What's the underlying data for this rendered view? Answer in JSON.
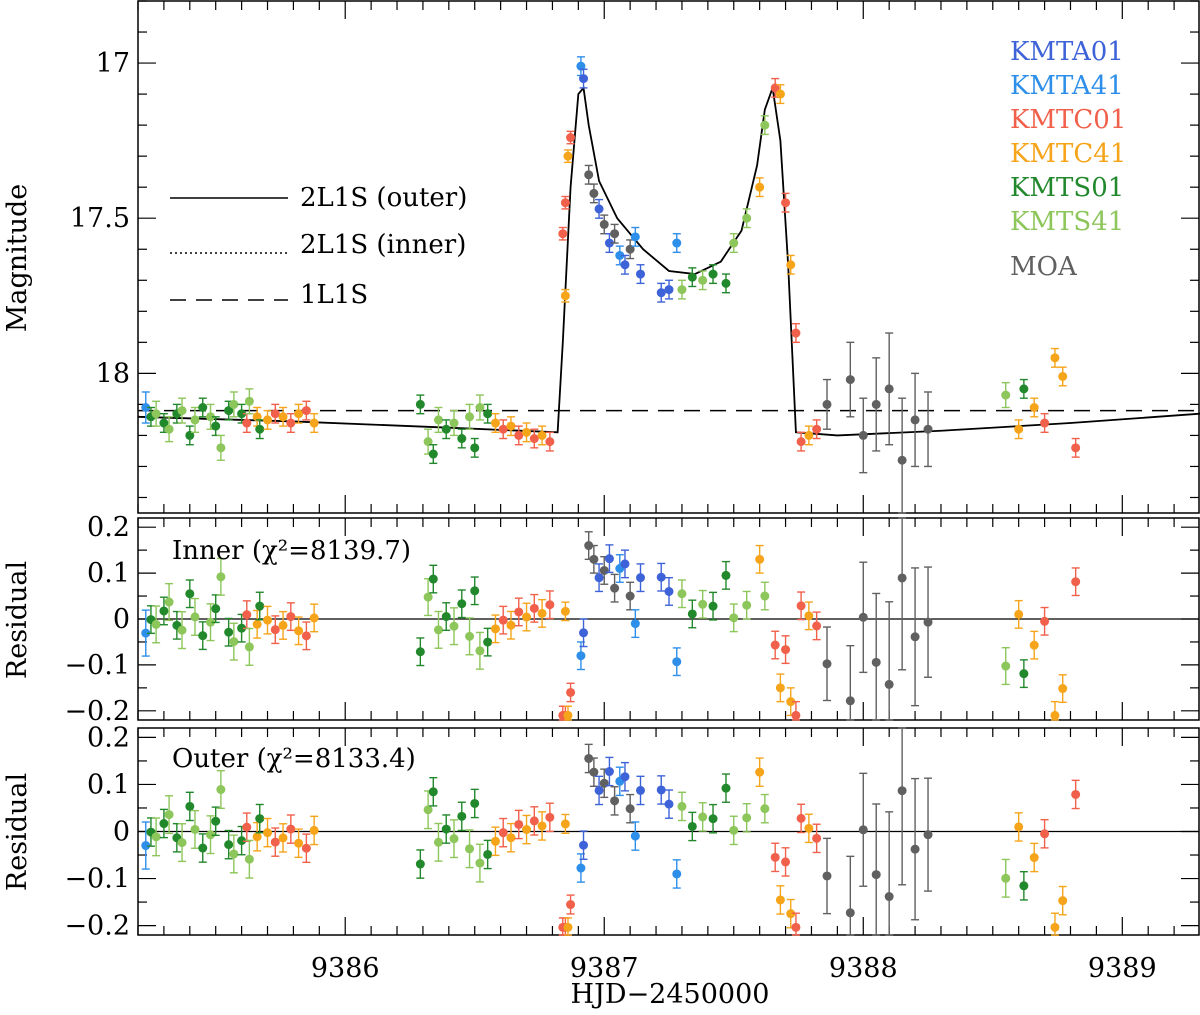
{
  "chart_data": [
    {
      "panel": "main",
      "type": "scatter",
      "xlabel": "HJD−2450000",
      "ylabel": "Magnitude",
      "xlim": [
        9385.2,
        9389.3
      ],
      "ylim": [
        18.45,
        16.8
      ],
      "y_inverted": true,
      "xticks": [
        9386,
        9387,
        9388,
        9389
      ],
      "xtick_labels": [
        "9386",
        "9387",
        "9388",
        "9389"
      ],
      "yticks": [
        17,
        17.5,
        18
      ],
      "ytick_labels": [
        "17",
        "17.5",
        "18"
      ],
      "legend_position": "top-right",
      "datasets": [
        {
          "name": "KMTA01",
          "color": "#3E63D8"
        },
        {
          "name": "KMTA41",
          "color": "#2E8FEA"
        },
        {
          "name": "KMTC01",
          "color": "#F1604B"
        },
        {
          "name": "KMTC41",
          "color": "#F6A41A"
        },
        {
          "name": "KMTS01",
          "color": "#22882C"
        },
        {
          "name": "KMTS41",
          "color": "#8DC65A"
        },
        {
          "name": "MOA",
          "color": "#606060"
        }
      ],
      "models": [
        {
          "name": "2L1S (outer)",
          "style": "solid"
        },
        {
          "name": "2L1S (inner)",
          "style": "dotted"
        },
        {
          "name": "1L1S",
          "style": "dashed"
        }
      ],
      "model_2l1s_points": [
        [
          9385.2,
          18.14
        ],
        [
          9385.8,
          18.155
        ],
        [
          9386.4,
          18.175
        ],
        [
          9386.82,
          18.19
        ],
        [
          9386.84,
          17.9
        ],
        [
          9386.87,
          17.4
        ],
        [
          9386.9,
          17.1
        ],
        [
          9386.92,
          17.08
        ],
        [
          9386.94,
          17.2
        ],
        [
          9386.98,
          17.38
        ],
        [
          9387.05,
          17.5
        ],
        [
          9387.15,
          17.6
        ],
        [
          9387.25,
          17.67
        ],
        [
          9387.35,
          17.68
        ],
        [
          9387.45,
          17.64
        ],
        [
          9387.53,
          17.54
        ],
        [
          9387.59,
          17.33
        ],
        [
          9387.62,
          17.15
        ],
        [
          9387.65,
          17.08
        ],
        [
          9387.68,
          17.25
        ],
        [
          9387.71,
          17.65
        ],
        [
          9387.74,
          18.19
        ],
        [
          9387.9,
          18.2
        ],
        [
          9388.3,
          18.185
        ],
        [
          9388.8,
          18.16
        ],
        [
          9389.3,
          18.13
        ]
      ],
      "model_1l1s_points": [
        [
          9385.2,
          18.12
        ],
        [
          9389.3,
          18.12
        ]
      ],
      "data_points": [
        {
          "ds": "KMTA41",
          "x": 9385.23,
          "y": 18.11,
          "err": 0.05
        },
        {
          "ds": "KMTS01",
          "x": 9385.25,
          "y": 18.14,
          "err": 0.03
        },
        {
          "ds": "KMTS41",
          "x": 9385.27,
          "y": 18.13,
          "err": 0.04
        },
        {
          "ds": "KMTS01",
          "x": 9385.3,
          "y": 18.16,
          "err": 0.03
        },
        {
          "ds": "KMTS41",
          "x": 9385.32,
          "y": 18.18,
          "err": 0.04
        },
        {
          "ds": "KMTS01",
          "x": 9385.35,
          "y": 18.13,
          "err": 0.03
        },
        {
          "ds": "KMTS41",
          "x": 9385.37,
          "y": 18.12,
          "err": 0.04
        },
        {
          "ds": "KMTS01",
          "x": 9385.4,
          "y": 18.2,
          "err": 0.03
        },
        {
          "ds": "KMTS41",
          "x": 9385.42,
          "y": 18.15,
          "err": 0.04
        },
        {
          "ds": "KMTS01",
          "x": 9385.45,
          "y": 18.11,
          "err": 0.03
        },
        {
          "ds": "KMTS41",
          "x": 9385.48,
          "y": 18.14,
          "err": 0.04
        },
        {
          "ds": "KMTS01",
          "x": 9385.5,
          "y": 18.17,
          "err": 0.03
        },
        {
          "ds": "KMTS41",
          "x": 9385.52,
          "y": 18.24,
          "err": 0.04
        },
        {
          "ds": "KMTS01",
          "x": 9385.55,
          "y": 18.12,
          "err": 0.03
        },
        {
          "ds": "KMTS41",
          "x": 9385.57,
          "y": 18.1,
          "err": 0.04
        },
        {
          "ds": "KMTS01",
          "x": 9385.6,
          "y": 18.13,
          "err": 0.03
        },
        {
          "ds": "KMTC01",
          "x": 9385.62,
          "y": 18.16,
          "err": 0.03
        },
        {
          "ds": "KMTS41",
          "x": 9385.63,
          "y": 18.09,
          "err": 0.04
        },
        {
          "ds": "KMTC41",
          "x": 9385.66,
          "y": 18.14,
          "err": 0.03
        },
        {
          "ds": "KMTS01",
          "x": 9385.67,
          "y": 18.18,
          "err": 0.03
        },
        {
          "ds": "KMTC41",
          "x": 9385.7,
          "y": 18.15,
          "err": 0.03
        },
        {
          "ds": "KMTC01",
          "x": 9385.73,
          "y": 18.13,
          "err": 0.03
        },
        {
          "ds": "KMTC41",
          "x": 9385.76,
          "y": 18.14,
          "err": 0.03
        },
        {
          "ds": "KMTC01",
          "x": 9385.79,
          "y": 18.16,
          "err": 0.03
        },
        {
          "ds": "KMTC41",
          "x": 9385.82,
          "y": 18.13,
          "err": 0.03
        },
        {
          "ds": "KMTC01",
          "x": 9385.85,
          "y": 18.12,
          "err": 0.03
        },
        {
          "ds": "KMTC41",
          "x": 9385.88,
          "y": 18.16,
          "err": 0.03
        },
        {
          "ds": "KMTS01",
          "x": 9386.29,
          "y": 18.1,
          "err": 0.03
        },
        {
          "ds": "KMTS41",
          "x": 9386.32,
          "y": 18.22,
          "err": 0.04
        },
        {
          "ds": "KMTS01",
          "x": 9386.34,
          "y": 18.26,
          "err": 0.03
        },
        {
          "ds": "KMTS41",
          "x": 9386.36,
          "y": 18.15,
          "err": 0.04
        },
        {
          "ds": "KMTS01",
          "x": 9386.39,
          "y": 18.18,
          "err": 0.03
        },
        {
          "ds": "KMTS41",
          "x": 9386.42,
          "y": 18.16,
          "err": 0.04
        },
        {
          "ds": "KMTS01",
          "x": 9386.45,
          "y": 18.21,
          "err": 0.03
        },
        {
          "ds": "KMTS41",
          "x": 9386.48,
          "y": 18.14,
          "err": 0.04
        },
        {
          "ds": "KMTS01",
          "x": 9386.5,
          "y": 18.24,
          "err": 0.03
        },
        {
          "ds": "KMTS41",
          "x": 9386.52,
          "y": 18.11,
          "err": 0.04
        },
        {
          "ds": "KMTS01",
          "x": 9386.55,
          "y": 18.13,
          "err": 0.03
        },
        {
          "ds": "KMTC41",
          "x": 9386.58,
          "y": 18.16,
          "err": 0.03
        },
        {
          "ds": "KMTC01",
          "x": 9386.61,
          "y": 18.18,
          "err": 0.03
        },
        {
          "ds": "KMTC41",
          "x": 9386.64,
          "y": 18.17,
          "err": 0.03
        },
        {
          "ds": "KMTC01",
          "x": 9386.67,
          "y": 18.2,
          "err": 0.03
        },
        {
          "ds": "KMTC41",
          "x": 9386.7,
          "y": 18.19,
          "err": 0.03
        },
        {
          "ds": "KMTC01",
          "x": 9386.73,
          "y": 18.21,
          "err": 0.03
        },
        {
          "ds": "KMTC41",
          "x": 9386.76,
          "y": 18.2,
          "err": 0.03
        },
        {
          "ds": "KMTC01",
          "x": 9386.79,
          "y": 18.22,
          "err": 0.03
        },
        {
          "ds": "KMTC41",
          "x": 9386.85,
          "y": 17.75,
          "err": 0.02
        },
        {
          "ds": "KMTC01",
          "x": 9386.84,
          "y": 17.55,
          "err": 0.02
        },
        {
          "ds": "KMTC01",
          "x": 9386.85,
          "y": 17.45,
          "err": 0.02
        },
        {
          "ds": "KMTC41",
          "x": 9386.86,
          "y": 17.3,
          "err": 0.02
        },
        {
          "ds": "KMTC01",
          "x": 9386.87,
          "y": 17.24,
          "err": 0.02
        },
        {
          "ds": "KMTA41",
          "x": 9386.91,
          "y": 17.01,
          "err": 0.03
        },
        {
          "ds": "KMTA01",
          "x": 9386.92,
          "y": 17.05,
          "err": 0.03
        },
        {
          "ds": "MOA",
          "x": 9386.94,
          "y": 17.36,
          "err": 0.03
        },
        {
          "ds": "MOA",
          "x": 9386.96,
          "y": 17.42,
          "err": 0.03
        },
        {
          "ds": "KMTA01",
          "x": 9386.98,
          "y": 17.47,
          "err": 0.03
        },
        {
          "ds": "MOA",
          "x": 9387.0,
          "y": 17.52,
          "err": 0.03
        },
        {
          "ds": "KMTA01",
          "x": 9387.02,
          "y": 17.58,
          "err": 0.03
        },
        {
          "ds": "MOA",
          "x": 9387.04,
          "y": 17.55,
          "err": 0.03
        },
        {
          "ds": "KMTA41",
          "x": 9387.06,
          "y": 17.62,
          "err": 0.03
        },
        {
          "ds": "KMTA01",
          "x": 9387.08,
          "y": 17.65,
          "err": 0.03
        },
        {
          "ds": "MOA",
          "x": 9387.1,
          "y": 17.6,
          "err": 0.03
        },
        {
          "ds": "KMTA41",
          "x": 9387.12,
          "y": 17.56,
          "err": 0.03
        },
        {
          "ds": "KMTA01",
          "x": 9387.14,
          "y": 17.68,
          "err": 0.03
        },
        {
          "ds": "KMTA01",
          "x": 9387.22,
          "y": 17.74,
          "err": 0.03
        },
        {
          "ds": "KMTA01",
          "x": 9387.25,
          "y": 17.73,
          "err": 0.03
        },
        {
          "ds": "KMTA41",
          "x": 9387.28,
          "y": 17.58,
          "err": 0.03
        },
        {
          "ds": "KMTS41",
          "x": 9387.3,
          "y": 17.73,
          "err": 0.03
        },
        {
          "ds": "KMTS01",
          "x": 9387.34,
          "y": 17.69,
          "err": 0.03
        },
        {
          "ds": "KMTS41",
          "x": 9387.38,
          "y": 17.7,
          "err": 0.03
        },
        {
          "ds": "KMTS01",
          "x": 9387.42,
          "y": 17.68,
          "err": 0.03
        },
        {
          "ds": "KMTS01",
          "x": 9387.47,
          "y": 17.71,
          "err": 0.03
        },
        {
          "ds": "KMTS41",
          "x": 9387.5,
          "y": 17.58,
          "err": 0.03
        },
        {
          "ds": "KMTS41",
          "x": 9387.55,
          "y": 17.5,
          "err": 0.03
        },
        {
          "ds": "KMTC41",
          "x": 9387.6,
          "y": 17.4,
          "err": 0.03
        },
        {
          "ds": "KMTS41",
          "x": 9387.62,
          "y": 17.2,
          "err": 0.03
        },
        {
          "ds": "KMTC01",
          "x": 9387.66,
          "y": 17.08,
          "err": 0.03
        },
        {
          "ds": "KMTC41",
          "x": 9387.68,
          "y": 17.1,
          "err": 0.03
        },
        {
          "ds": "KMTC01",
          "x": 9387.7,
          "y": 17.45,
          "err": 0.03
        },
        {
          "ds": "KMTC41",
          "x": 9387.72,
          "y": 17.65,
          "err": 0.03
        },
        {
          "ds": "KMTC01",
          "x": 9387.74,
          "y": 17.87,
          "err": 0.03
        },
        {
          "ds": "KMTC01",
          "x": 9387.76,
          "y": 18.22,
          "err": 0.03
        },
        {
          "ds": "KMTC41",
          "x": 9387.79,
          "y": 18.2,
          "err": 0.03
        },
        {
          "ds": "KMTC01",
          "x": 9387.82,
          "y": 18.18,
          "err": 0.03
        },
        {
          "ds": "MOA",
          "x": 9387.86,
          "y": 18.1,
          "err": 0.08
        },
        {
          "ds": "MOA",
          "x": 9387.95,
          "y": 18.02,
          "err": 0.12
        },
        {
          "ds": "MOA",
          "x": 9388.0,
          "y": 18.2,
          "err": 0.12
        },
        {
          "ds": "MOA",
          "x": 9388.05,
          "y": 18.1,
          "err": 0.15
        },
        {
          "ds": "MOA",
          "x": 9388.1,
          "y": 18.05,
          "err": 0.18
        },
        {
          "ds": "MOA",
          "x": 9388.15,
          "y": 18.28,
          "err": 0.2
        },
        {
          "ds": "MOA",
          "x": 9388.2,
          "y": 18.15,
          "err": 0.15
        },
        {
          "ds": "MOA",
          "x": 9388.25,
          "y": 18.18,
          "err": 0.12
        },
        {
          "ds": "KMTS41",
          "x": 9388.55,
          "y": 18.07,
          "err": 0.04
        },
        {
          "ds": "KMTC41",
          "x": 9388.6,
          "y": 18.18,
          "err": 0.03
        },
        {
          "ds": "KMTS01",
          "x": 9388.62,
          "y": 18.05,
          "err": 0.03
        },
        {
          "ds": "KMTC41",
          "x": 9388.66,
          "y": 18.11,
          "err": 0.03
        },
        {
          "ds": "KMTC01",
          "x": 9388.7,
          "y": 18.16,
          "err": 0.03
        },
        {
          "ds": "KMTC41",
          "x": 9388.74,
          "y": 17.95,
          "err": 0.03
        },
        {
          "ds": "KMTC41",
          "x": 9388.77,
          "y": 18.01,
          "err": 0.03
        },
        {
          "ds": "KMTC01",
          "x": 9388.82,
          "y": 18.24,
          "err": 0.03
        }
      ]
    },
    {
      "panel": "residual-inner",
      "type": "scatter",
      "ylabel": "Residual",
      "label": "Inner (χ²=8139.7)",
      "xlim": [
        9385.2,
        9389.3
      ],
      "ylim": [
        -0.22,
        0.22
      ],
      "yticks": [
        -0.2,
        -0.1,
        0,
        0.1,
        0.2
      ],
      "ytick_labels": [
        "−0.2",
        "−0.1",
        "0",
        "0.1",
        "0.2"
      ]
    },
    {
      "panel": "residual-outer",
      "type": "scatter",
      "ylabel": "Residual",
      "label": "Outer (χ²=8133.4)",
      "xlim": [
        9385.2,
        9389.3
      ],
      "ylim": [
        -0.22,
        0.22
      ],
      "yticks": [
        -0.2,
        -0.1,
        0,
        0.1,
        0.2
      ],
      "ytick_labels": [
        "−0.2",
        "−0.1",
        "0",
        "0.1",
        "0.2"
      ]
    }
  ]
}
